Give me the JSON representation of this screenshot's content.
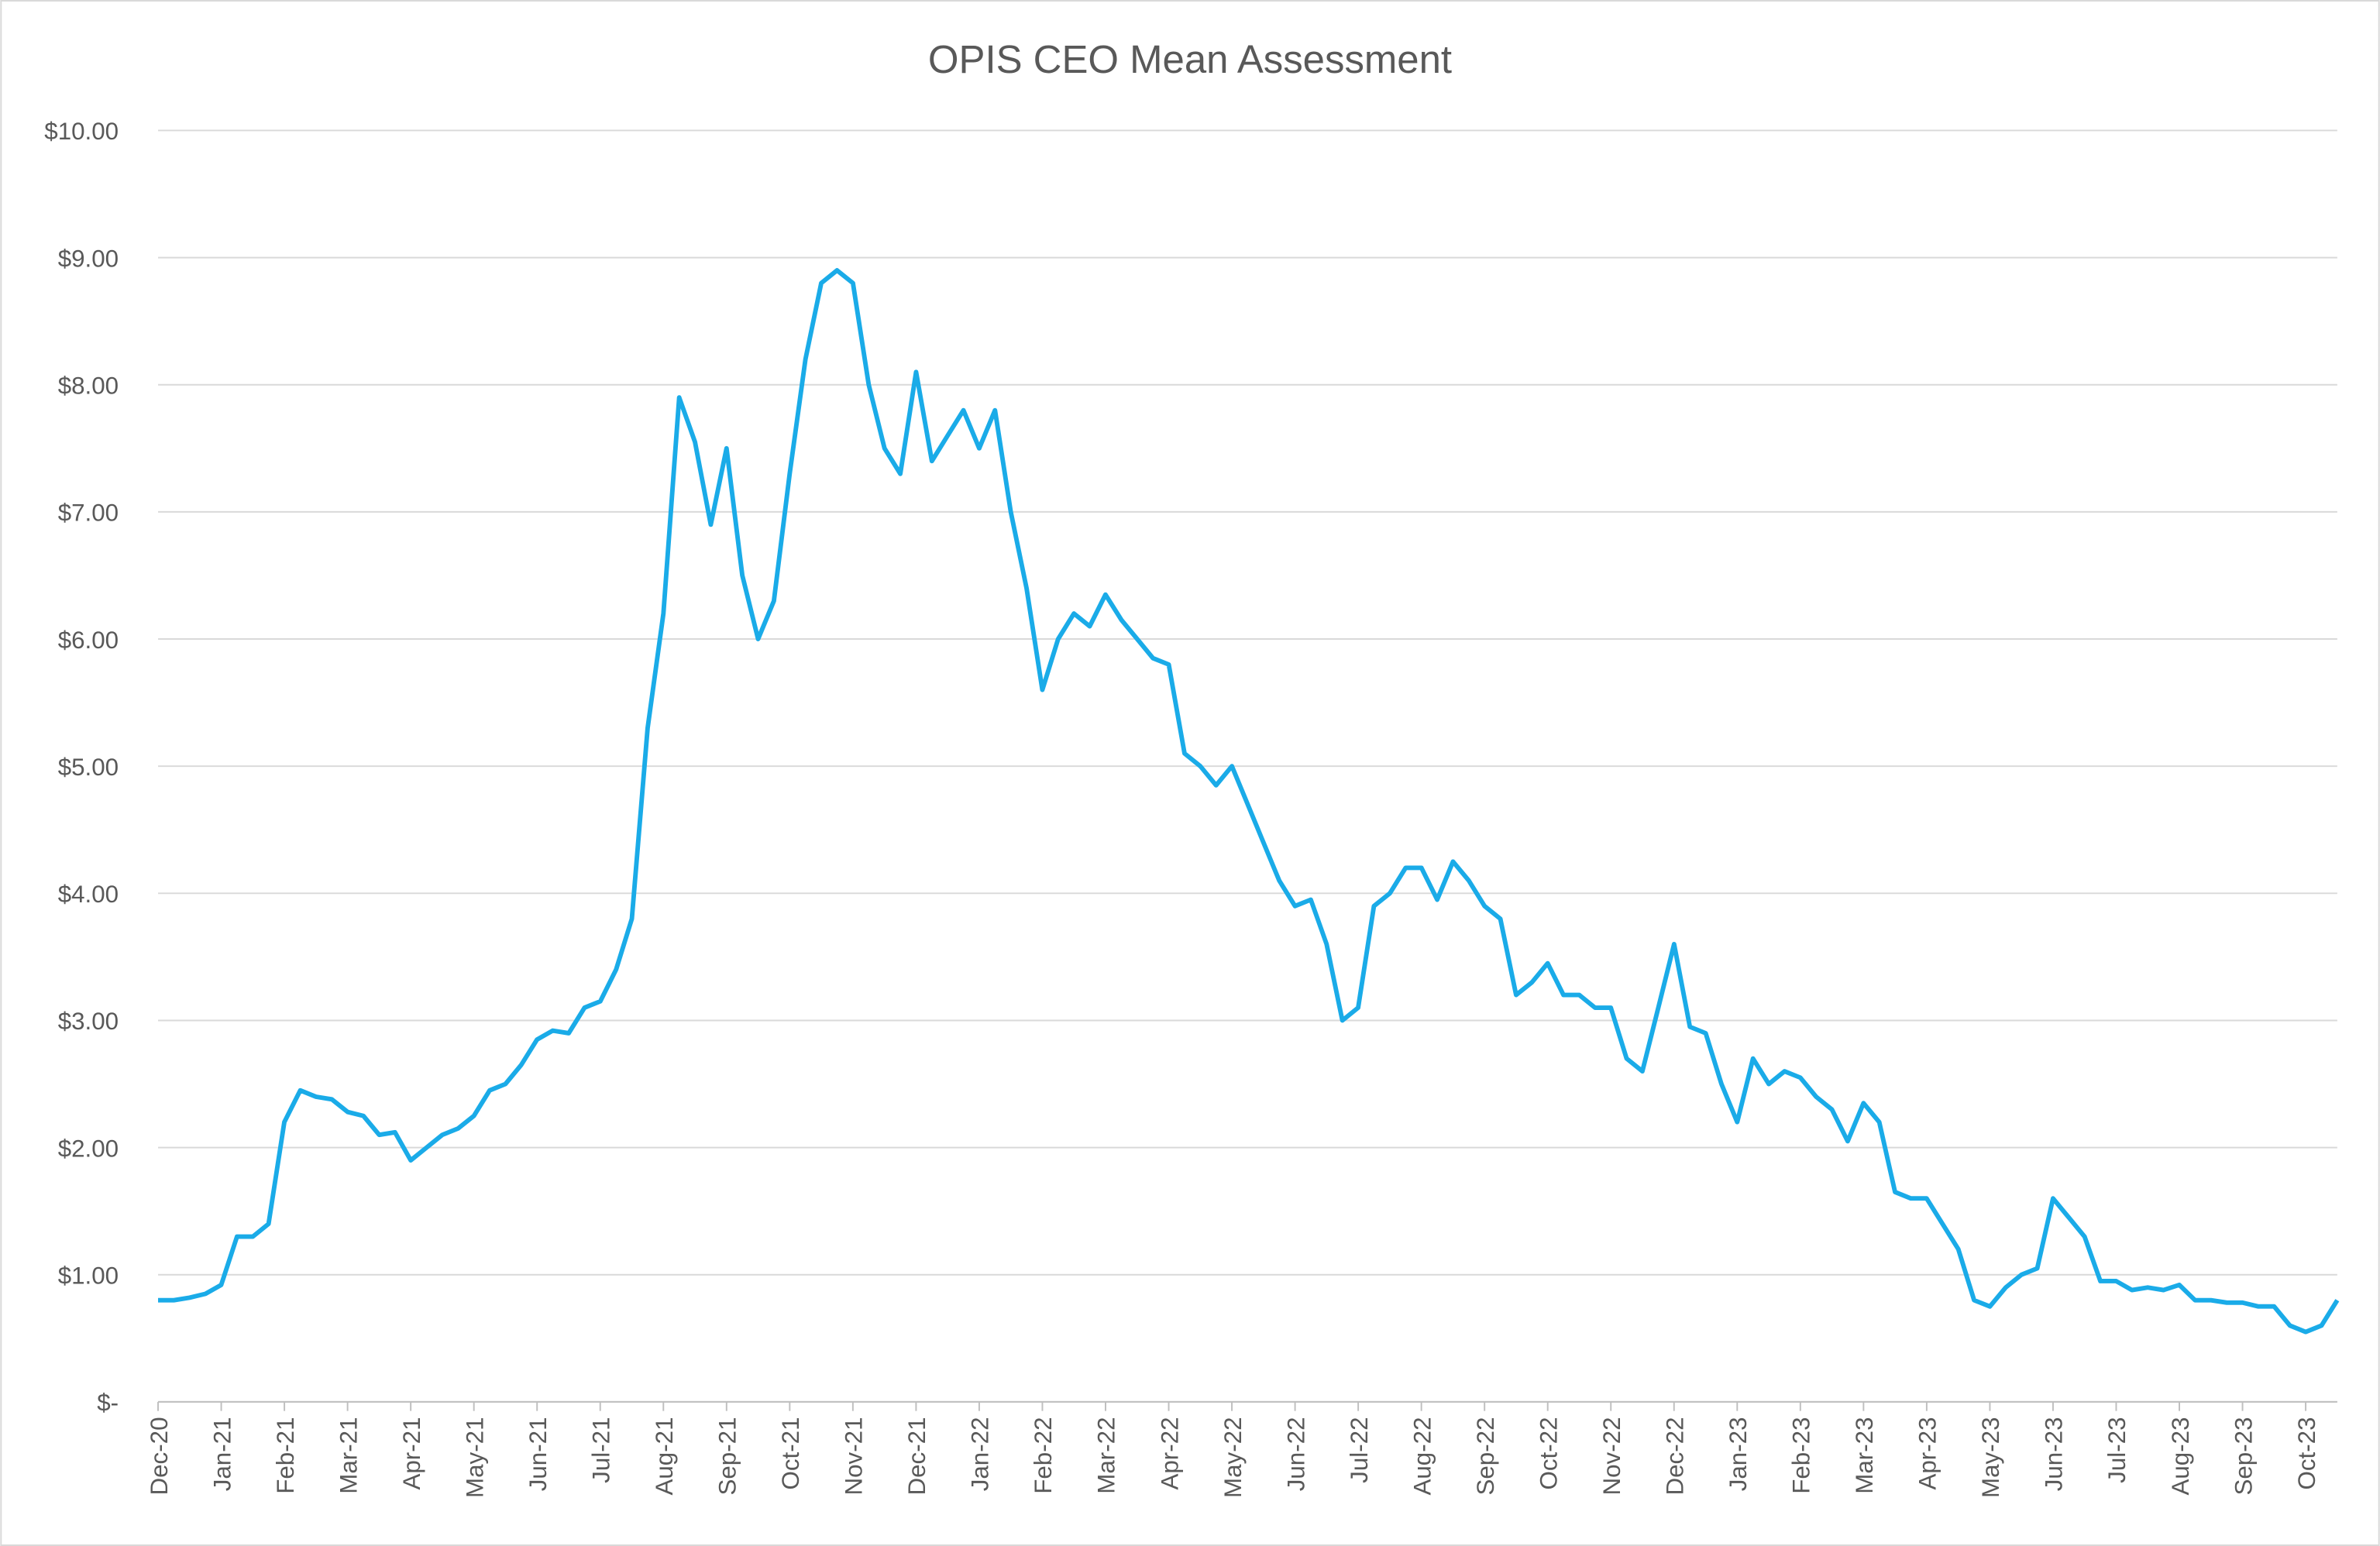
{
  "chart_data": {
    "type": "line",
    "title": "OPIS CEO Mean Assessment",
    "categories": [
      "Dec-20",
      null,
      null,
      null,
      "Jan-21",
      null,
      null,
      null,
      "Feb-21",
      null,
      null,
      null,
      "Mar-21",
      null,
      null,
      null,
      "Apr-21",
      null,
      null,
      null,
      "May-21",
      null,
      null,
      null,
      "Jun-21",
      null,
      null,
      null,
      "Jul-21",
      null,
      null,
      null,
      "Aug-21",
      null,
      null,
      null,
      "Sep-21",
      null,
      null,
      null,
      "Oct-21",
      null,
      null,
      null,
      "Nov-21",
      null,
      null,
      null,
      "Dec-21",
      null,
      null,
      null,
      "Jan-22",
      null,
      null,
      null,
      "Feb-22",
      null,
      null,
      null,
      "Mar-22",
      null,
      null,
      null,
      "Apr-22",
      null,
      null,
      null,
      "May-22",
      null,
      null,
      null,
      "Jun-22",
      null,
      null,
      null,
      "Jul-22",
      null,
      null,
      null,
      "Aug-22",
      null,
      null,
      null,
      "Sep-22",
      null,
      null,
      null,
      "Oct-22",
      null,
      null,
      null,
      "Nov-22",
      null,
      null,
      null,
      "Dec-22",
      null,
      null,
      null,
      "Jan-23",
      null,
      null,
      null,
      "Feb-23",
      null,
      null,
      null,
      "Mar-23",
      null,
      null,
      null,
      "Apr-23",
      null,
      null,
      null,
      "May-23",
      null,
      null,
      null,
      "Jun-23",
      null,
      null,
      null,
      "Jul-23",
      null,
      null,
      null,
      "Aug-23",
      null,
      null,
      null,
      "Sep-23",
      null,
      null,
      null,
      "Oct-23",
      null,
      null
    ],
    "series": [
      {
        "color": "#1aabe8",
        "values": [
          0.8,
          0.8,
          0.82,
          0.85,
          0.92,
          1.3,
          1.3,
          1.4,
          2.2,
          2.45,
          2.4,
          2.38,
          2.28,
          2.25,
          2.1,
          2.12,
          1.9,
          2.0,
          2.1,
          2.15,
          2.25,
          2.45,
          2.5,
          2.65,
          2.85,
          2.92,
          2.9,
          3.1,
          3.15,
          3.4,
          3.8,
          5.3,
          6.2,
          7.9,
          7.55,
          6.9,
          7.5,
          6.5,
          6.0,
          6.3,
          7.3,
          8.2,
          8.8,
          8.9,
          8.8,
          8.0,
          7.5,
          7.3,
          8.1,
          7.4,
          7.6,
          7.8,
          7.5,
          7.8,
          7.0,
          6.4,
          5.6,
          6.0,
          6.2,
          6.1,
          6.35,
          6.15,
          6.0,
          5.85,
          5.8,
          5.1,
          5.0,
          4.85,
          5.0,
          4.7,
          4.4,
          4.1,
          3.9,
          3.95,
          3.6,
          3.0,
          3.1,
          3.9,
          4.0,
          4.2,
          4.2,
          3.95,
          4.25,
          4.1,
          3.9,
          3.8,
          3.2,
          3.3,
          3.45,
          3.2,
          3.2,
          3.1,
          3.1,
          2.7,
          2.6,
          3.1,
          3.6,
          2.95,
          2.9,
          2.5,
          2.2,
          2.7,
          2.5,
          2.6,
          2.55,
          2.4,
          2.3,
          2.05,
          2.35,
          2.2,
          1.65,
          1.6,
          1.6,
          1.4,
          1.2,
          0.8,
          0.75,
          0.9,
          1.0,
          1.05,
          1.6,
          1.45,
          1.3,
          0.95,
          0.95,
          0.88,
          0.9,
          0.88,
          0.92,
          0.8,
          0.8,
          0.78,
          0.78,
          0.75,
          0.75,
          0.6,
          0.55,
          0.6,
          0.8
        ]
      }
    ],
    "ylim": [
      0,
      10
    ],
    "yticks": [
      {
        "value": 0,
        "label": "$-"
      },
      {
        "value": 1,
        "label": "$1.00"
      },
      {
        "value": 2,
        "label": "$2.00"
      },
      {
        "value": 3,
        "label": "$3.00"
      },
      {
        "value": 4,
        "label": "$4.00"
      },
      {
        "value": 5,
        "label": "$5.00"
      },
      {
        "value": 6,
        "label": "$6.00"
      },
      {
        "value": 7,
        "label": "$7.00"
      },
      {
        "value": 8,
        "label": "$8.00"
      },
      {
        "value": 9,
        "label": "$9.00"
      },
      {
        "value": 10,
        "label": "$10.00"
      }
    ],
    "grid": true
  }
}
